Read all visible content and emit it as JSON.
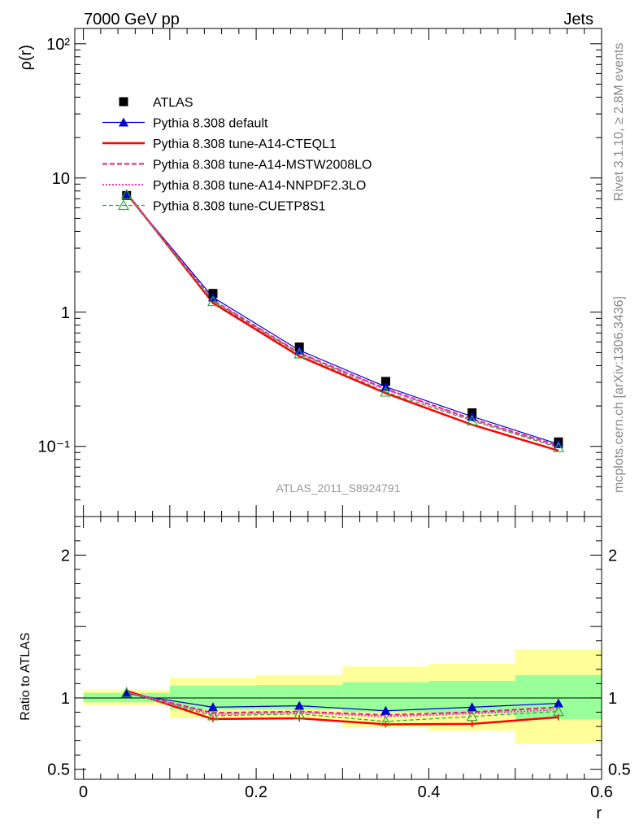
{
  "header": {
    "left": "7000 GeV pp",
    "right": "Jets"
  },
  "side_text": {
    "version": "Rivet 3.1.10, ≥ 2.8M events",
    "site": "mcplots.cern.ch [arXiv:1306.3436]"
  },
  "colors": {
    "atlas": "#000000",
    "default": "#0000cc",
    "cteql1": "#ff0000",
    "mstw": "#e6197a",
    "nnpdf": "#ff33cc",
    "cuetp": "#33aa33",
    "band_inner": "#99ff99",
    "band_outer": "#ffff99"
  },
  "chart_data": [
    {
      "type": "line",
      "title": "",
      "annotation": "ATLAS_2011_S8924791",
      "ylabel": "ρ(r)",
      "yscale": "log",
      "xlim": [
        -0.01,
        0.6
      ],
      "ylim": [
        0.03,
        130
      ],
      "y_ticks": [
        {
          "v": 0.1,
          "label": "10⁻¹"
        },
        {
          "v": 1,
          "label": "1"
        },
        {
          "v": 10,
          "label": "10"
        },
        {
          "v": 100,
          "label": "10²"
        }
      ],
      "x": [
        0.05,
        0.15,
        0.25,
        0.35,
        0.45,
        0.55
      ],
      "series": [
        {
          "name": "ATLAS",
          "key": "atlas",
          "values": [
            7.4,
            1.38,
            0.55,
            0.305,
            0.178,
            0.108
          ]
        },
        {
          "name": "Pythia 8.308 default",
          "key": "default",
          "values": [
            7.6,
            1.29,
            0.52,
            0.278,
            0.167,
            0.104
          ]
        },
        {
          "name": "Pythia 8.308 tune-A14-CTEQL1",
          "key": "cteql1",
          "values": [
            7.7,
            1.17,
            0.47,
            0.249,
            0.145,
            0.093
          ]
        },
        {
          "name": "Pythia 8.308 tune-A14-MSTW2008LO",
          "key": "mstw",
          "values": [
            7.6,
            1.23,
            0.497,
            0.268,
            0.16,
            0.101
          ]
        },
        {
          "name": "Pythia 8.308 tune-A14-NNPDF2.3LO",
          "key": "nnpdf",
          "values": [
            7.6,
            1.22,
            0.494,
            0.265,
            0.158,
            0.099
          ]
        },
        {
          "name": "Pythia 8.308 tune-CUETP8S1",
          "key": "cuetp",
          "values": [
            7.5,
            1.2,
            0.489,
            0.254,
            0.155,
            0.098
          ]
        }
      ],
      "legend": "top-left"
    },
    {
      "type": "line",
      "ylabel": "Ratio to ATLAS",
      "xlabel": "r",
      "xlim": [
        -0.01,
        0.6
      ],
      "ylim": [
        0.43,
        2.27
      ],
      "y_ticks": [
        {
          "v": 0.5,
          "label": "0.5"
        },
        {
          "v": 1,
          "label": "1"
        },
        {
          "v": 2,
          "label": "2"
        }
      ],
      "x_ticks": [
        {
          "v": 0,
          "label": "0"
        },
        {
          "v": 0.2,
          "label": "0.2"
        },
        {
          "v": 0.4,
          "label": "0.4"
        },
        {
          "v": 0.6,
          "label": "0.6"
        }
      ],
      "bins": [
        {
          "lo": 0.0,
          "hi": 0.1,
          "inner": [
            0.97,
            1.035
          ],
          "outer": [
            0.95,
            1.055
          ]
        },
        {
          "lo": 0.1,
          "hi": 0.2,
          "inner": [
            0.92,
            1.085
          ],
          "outer": [
            0.86,
            1.14
          ]
        },
        {
          "lo": 0.2,
          "hi": 0.3,
          "inner": [
            0.92,
            1.09
          ],
          "outer": [
            0.85,
            1.16
          ]
        },
        {
          "lo": 0.3,
          "hi": 0.4,
          "inner": [
            0.9,
            1.11
          ],
          "outer": [
            0.79,
            1.22
          ]
        },
        {
          "lo": 0.4,
          "hi": 0.5,
          "inner": [
            0.89,
            1.12
          ],
          "outer": [
            0.77,
            1.24
          ]
        },
        {
          "lo": 0.5,
          "hi": 0.6,
          "inner": [
            0.85,
            1.16
          ],
          "outer": [
            0.68,
            1.34
          ]
        }
      ],
      "series": [
        {
          "name": "Pythia 8.308 default",
          "key": "default",
          "values": [
            1.03,
            0.935,
            0.945,
            0.91,
            0.935,
            0.962
          ]
        },
        {
          "name": "Pythia 8.308 tune-A14-CTEQL1",
          "key": "cteql1",
          "values": [
            1.05,
            0.852,
            0.857,
            0.815,
            0.818,
            0.865
          ]
        },
        {
          "name": "Pythia 8.308 tune-A14-MSTW2008LO",
          "key": "mstw",
          "values": [
            1.04,
            0.895,
            0.905,
            0.88,
            0.9,
            0.935
          ]
        },
        {
          "name": "Pythia 8.308 tune-A14-NNPDF2.3LO",
          "key": "nnpdf",
          "values": [
            1.04,
            0.885,
            0.898,
            0.87,
            0.89,
            0.918
          ]
        },
        {
          "name": "Pythia 8.308 tune-CUETP8S1",
          "key": "cuetp",
          "values": [
            1.035,
            0.875,
            0.888,
            0.835,
            0.87,
            0.905
          ]
        }
      ]
    }
  ]
}
